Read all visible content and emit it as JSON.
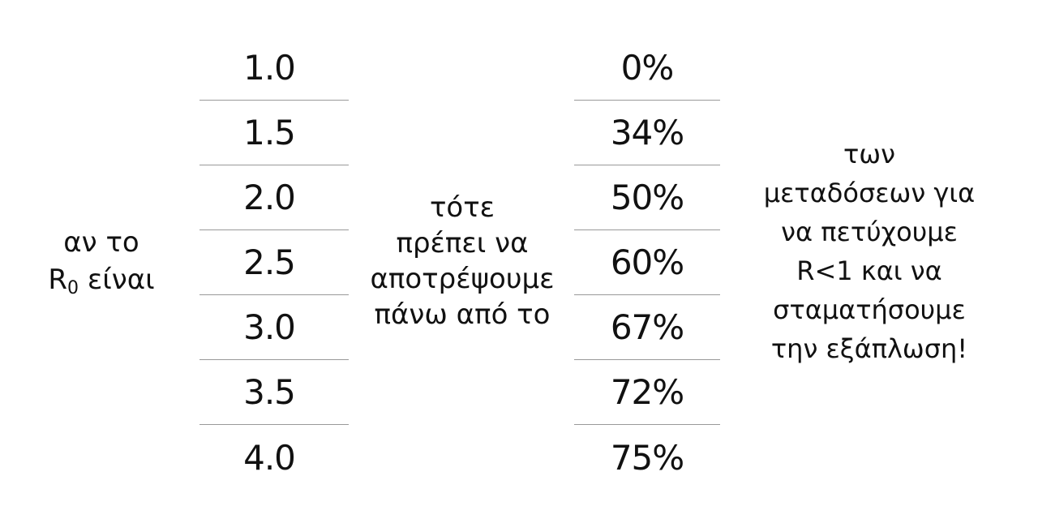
{
  "left": {
    "line1": "αν το",
    "r_symbol": "R",
    "r_subscript": "0",
    "line2_rest": "είναι"
  },
  "r0_values": [
    "1.0",
    "1.5",
    "2.0",
    "2.5",
    "3.0",
    "3.5",
    "4.0"
  ],
  "middle": {
    "lines": [
      "τότε",
      "πρέπει να",
      "αποτρέψουμε",
      "πάνω από το"
    ]
  },
  "percentages": [
    "0%",
    "34%",
    "50%",
    "60%",
    "67%",
    "72%",
    "75%"
  ],
  "right": {
    "lines": [
      "των",
      "μεταδόσεων για",
      "να πετύχουμε",
      "R<1 και να",
      "σταματήσουμε",
      "την εξάπλωση!"
    ]
  }
}
